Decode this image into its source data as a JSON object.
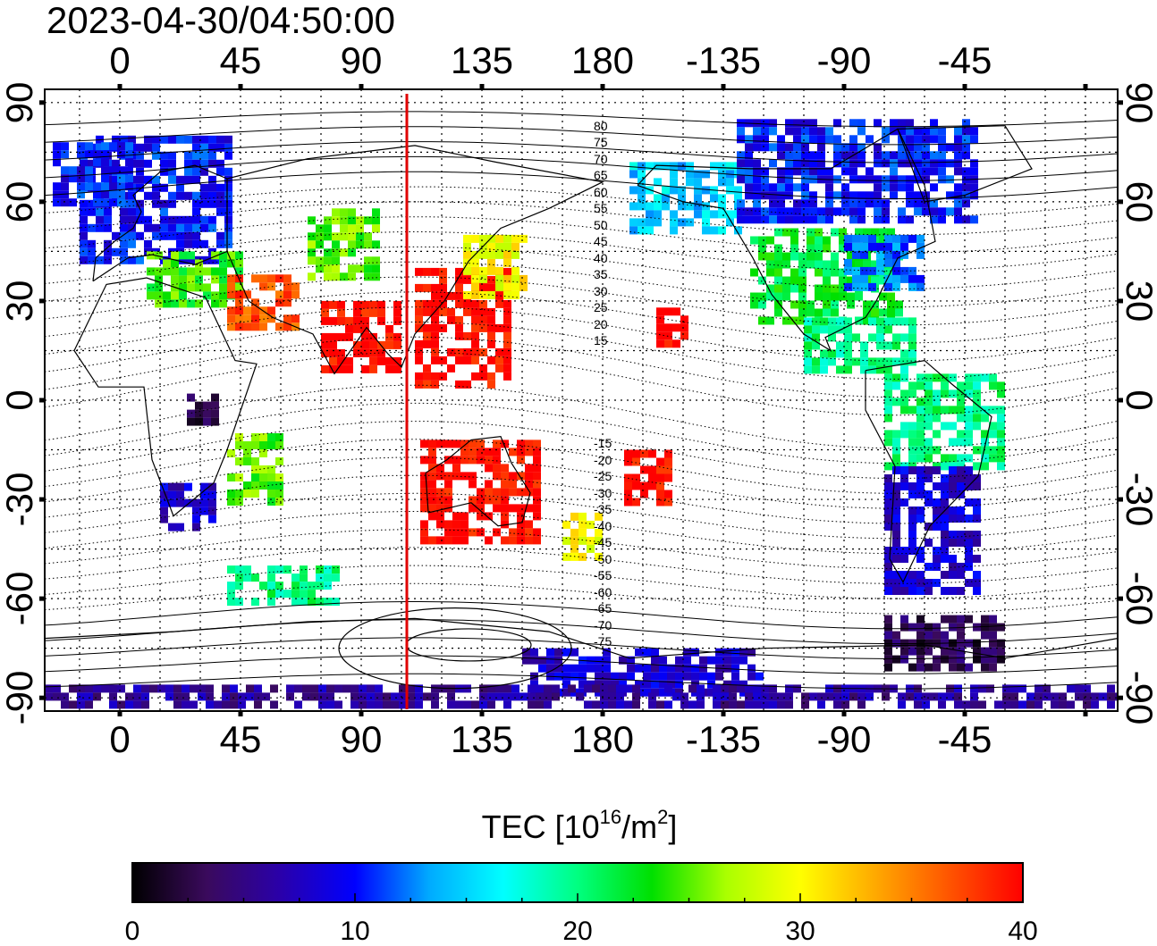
{
  "title": "2023-04-30/04:50:00",
  "top_lon_labels": [
    {
      "text": "0",
      "lon": 0
    },
    {
      "text": "45",
      "lon": 45
    },
    {
      "text": "90",
      "lon": 90
    },
    {
      "text": "135",
      "lon": 135
    },
    {
      "text": "180",
      "lon": 180
    },
    {
      "text": "-135",
      "lon": 225
    },
    {
      "text": "-90",
      "lon": 270
    },
    {
      "text": "-45",
      "lon": 315
    }
  ],
  "bottom_lon_labels": [
    {
      "text": "0",
      "lon": 0
    },
    {
      "text": "45",
      "lon": 45
    },
    {
      "text": "90",
      "lon": 90
    },
    {
      "text": "135",
      "lon": 135
    },
    {
      "text": "180",
      "lon": 180
    },
    {
      "text": "-135",
      "lon": 225
    },
    {
      "text": "-90",
      "lon": 270
    },
    {
      "text": "-45",
      "lon": 315
    }
  ],
  "lat_labels": [
    {
      "text": "90",
      "lat": 90
    },
    {
      "text": "60",
      "lat": 60
    },
    {
      "text": "30",
      "lat": 30
    },
    {
      "text": "0",
      "lat": 0
    },
    {
      "text": "-30",
      "lat": -30
    },
    {
      "text": "-60",
      "lat": -60
    },
    {
      "text": "-90",
      "lat": -90
    }
  ],
  "map_extent": {
    "lon_min": -28,
    "lon_max": 372,
    "lat_min": -94,
    "lat_max": 94
  },
  "terminator_longitude": 107,
  "contour_labels": [
    "80",
    "75",
    "70",
    "65",
    "60",
    "55",
    "50",
    "45",
    "40",
    "35",
    "30",
    "25",
    "20",
    "15",
    "-15",
    "-20",
    "-25",
    "-30",
    "-35",
    "-40",
    "-45",
    "-50",
    "-55",
    "-60",
    "-65",
    "-70",
    "-75"
  ],
  "colorbar": {
    "title_main": "TEC  [10",
    "title_sup1": "16",
    "title_mid": "/m",
    "title_sup2": "2",
    "title_end": "]",
    "min": 0,
    "max": 40,
    "ticks": [
      {
        "text": "0",
        "value": 0
      },
      {
        "text": "10",
        "value": 10
      },
      {
        "text": "20",
        "value": 20
      },
      {
        "text": "30",
        "value": 30
      },
      {
        "text": "40",
        "value": 40
      }
    ],
    "colors": [
      "#000000",
      "#3a0a5c",
      "#2a00aa",
      "#0000ff",
      "#00aaff",
      "#00ffff",
      "#00ff80",
      "#00e000",
      "#aaff00",
      "#ffff00",
      "#ffaa00",
      "#ff5500",
      "#ff0000"
    ]
  },
  "tec_regions": [
    {
      "name": "europe-north",
      "lon": [
        -15,
        40
      ],
      "lat": [
        42,
        80
      ],
      "tec": 10
    },
    {
      "name": "north-atlantic",
      "lon": [
        -25,
        5
      ],
      "lat": [
        60,
        78
      ],
      "tec": 10
    },
    {
      "name": "mediterranean",
      "lon": [
        10,
        45
      ],
      "lat": [
        30,
        45
      ],
      "tec": 24
    },
    {
      "name": "middle-east",
      "lon": [
        40,
        65
      ],
      "lat": [
        22,
        38
      ],
      "tec": 37
    },
    {
      "name": "central-asia",
      "lon": [
        70,
        95
      ],
      "lat": [
        38,
        58
      ],
      "tec": 25
    },
    {
      "name": "india",
      "lon": [
        75,
        105
      ],
      "lat": [
        10,
        30
      ],
      "tec": 40
    },
    {
      "name": "east-asia",
      "lon": [
        110,
        145
      ],
      "lat": [
        5,
        40
      ],
      "tec": 40
    },
    {
      "name": "japan",
      "lon": [
        128,
        150
      ],
      "lat": [
        32,
        50
      ],
      "tec": 30
    },
    {
      "name": "africa-central",
      "lon": [
        25,
        35
      ],
      "lat": [
        -6,
        2
      ],
      "tec": 2
    },
    {
      "name": "africa-east",
      "lon": [
        40,
        60
      ],
      "lat": [
        -30,
        -10
      ],
      "tec": 25
    },
    {
      "name": "south-africa",
      "lon": [
        15,
        35
      ],
      "lat": [
        -38,
        -25
      ],
      "tec": 8
    },
    {
      "name": "southern-ocean",
      "lon": [
        40,
        80
      ],
      "lat": [
        -60,
        -50
      ],
      "tec": 20
    },
    {
      "name": "australia",
      "lon": [
        112,
        155
      ],
      "lat": [
        -42,
        -12
      ],
      "tec": 40
    },
    {
      "name": "new-zealand",
      "lon": [
        165,
        180
      ],
      "lat": [
        -48,
        -34
      ],
      "tec": 30
    },
    {
      "name": "pacific-islands",
      "lon": [
        188,
        205
      ],
      "lat": [
        -30,
        -15
      ],
      "tec": 40
    },
    {
      "name": "hawaii",
      "lon": [
        200,
        210
      ],
      "lat": [
        18,
        28
      ],
      "tec": 40
    },
    {
      "name": "alaska",
      "lon": [
        190,
        230
      ],
      "lat": [
        52,
        72
      ],
      "tec": 15
    },
    {
      "name": "canada",
      "lon": [
        230,
        320
      ],
      "lat": [
        55,
        85
      ],
      "tec": 10
    },
    {
      "name": "usa",
      "lon": [
        235,
        290
      ],
      "lat": [
        25,
        52
      ],
      "tec": 22
    },
    {
      "name": "usa-east",
      "lon": [
        270,
        300
      ],
      "lat": [
        35,
        50
      ],
      "tec": 12
    },
    {
      "name": "central-america",
      "lon": [
        255,
        295
      ],
      "lat": [
        10,
        25
      ],
      "tec": 20
    },
    {
      "name": "south-america-north",
      "lon": [
        285,
        330
      ],
      "lat": [
        -20,
        8
      ],
      "tec": 20
    },
    {
      "name": "south-america-south",
      "lon": [
        285,
        320
      ],
      "lat": [
        -58,
        -20
      ],
      "tec": 8
    },
    {
      "name": "antarctica-west",
      "lon": [
        285,
        330
      ],
      "lat": [
        -80,
        -65
      ],
      "tec": 3
    },
    {
      "name": "antarctica-east",
      "lon": [
        150,
        240
      ],
      "lat": [
        -88,
        -75
      ],
      "tec": 8
    },
    {
      "name": "antarctica-band",
      "lon": [
        -28,
        372
      ],
      "lat": [
        -92,
        -86
      ],
      "tec": 6
    }
  ]
}
